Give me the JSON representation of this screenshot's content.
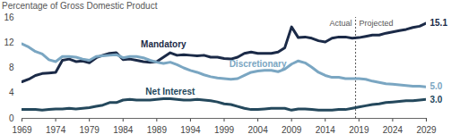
{
  "chart_data": {
    "type": "line",
    "y_label": "Percentage of Gross Domestic Product",
    "x": [
      1969,
      1970,
      1971,
      1972,
      1973,
      1974,
      1975,
      1976,
      1977,
      1978,
      1979,
      1980,
      1981,
      1982,
      1983,
      1984,
      1985,
      1986,
      1987,
      1988,
      1989,
      1990,
      1991,
      1992,
      1993,
      1994,
      1995,
      1996,
      1997,
      1998,
      1999,
      2000,
      2001,
      2002,
      2003,
      2004,
      2005,
      2006,
      2007,
      2008,
      2009,
      2010,
      2011,
      2012,
      2013,
      2014,
      2015,
      2016,
      2017,
      2018,
      2019,
      2020,
      2021,
      2022,
      2023,
      2024,
      2025,
      2026,
      2027,
      2028,
      2029
    ],
    "series": [
      {
        "name": "Mandatory",
        "color": "#1b2a47",
        "values": [
          5.8,
          6.2,
          6.8,
          7.1,
          7.2,
          7.3,
          9.2,
          9.4,
          9.0,
          9.1,
          8.8,
          9.6,
          10.0,
          10.3,
          10.4,
          9.3,
          9.4,
          9.2,
          9.0,
          8.9,
          9.0,
          9.7,
          10.4,
          10.0,
          10.1,
          10.0,
          9.9,
          10.0,
          9.7,
          9.7,
          9.5,
          9.4,
          9.7,
          10.3,
          10.5,
          10.3,
          10.3,
          10.3,
          10.5,
          11.2,
          14.5,
          12.8,
          12.9,
          12.7,
          12.3,
          12.1,
          12.7,
          12.9,
          12.9,
          12.7,
          12.8,
          13.0,
          13.2,
          13.2,
          13.5,
          13.7,
          13.9,
          14.1,
          14.4,
          14.6,
          15.1
        ],
        "value_labels": [
          null,
          null,
          null,
          null,
          null,
          null,
          null,
          null,
          null,
          null,
          null,
          null,
          null,
          null,
          null,
          null,
          null,
          null,
          null,
          null,
          null,
          null,
          null,
          null,
          null,
          null,
          null,
          null,
          null,
          null,
          null,
          null,
          null,
          null,
          null,
          null,
          null,
          null,
          null,
          null,
          null,
          null,
          null,
          null,
          null,
          null,
          null,
          null,
          null,
          null,
          null,
          null,
          null,
          null,
          null,
          null,
          null,
          null,
          null,
          null,
          "15.1"
        ]
      },
      {
        "name": "Discretionary",
        "color": "#7aa6c2",
        "values": [
          11.8,
          11.3,
          10.6,
          10.2,
          9.3,
          9.0,
          9.8,
          9.8,
          9.7,
          9.4,
          9.2,
          9.8,
          9.9,
          10.0,
          10.1,
          9.6,
          9.8,
          9.8,
          9.6,
          9.2,
          8.9,
          8.7,
          8.9,
          8.5,
          8.0,
          7.6,
          7.3,
          6.9,
          6.6,
          6.4,
          6.3,
          6.2,
          6.3,
          6.8,
          7.3,
          7.5,
          7.6,
          7.6,
          7.4,
          7.8,
          8.6,
          9.1,
          8.8,
          8.1,
          7.3,
          6.8,
          6.5,
          6.5,
          6.3,
          6.3,
          6.3,
          6.2,
          5.9,
          5.7,
          5.5,
          5.4,
          5.3,
          5.2,
          5.1,
          5.1,
          5.0
        ],
        "value_labels": [
          null,
          null,
          null,
          null,
          null,
          null,
          null,
          null,
          null,
          null,
          null,
          null,
          null,
          null,
          null,
          null,
          null,
          null,
          null,
          null,
          null,
          null,
          null,
          null,
          null,
          null,
          null,
          null,
          null,
          null,
          null,
          null,
          null,
          null,
          null,
          null,
          null,
          null,
          null,
          null,
          null,
          null,
          null,
          null,
          null,
          null,
          null,
          null,
          null,
          null,
          null,
          null,
          null,
          null,
          null,
          null,
          null,
          null,
          null,
          null,
          "5.0"
        ]
      },
      {
        "name": "Net Interest",
        "color": "#24485c",
        "values": [
          1.4,
          1.4,
          1.4,
          1.3,
          1.4,
          1.5,
          1.5,
          1.6,
          1.5,
          1.6,
          1.7,
          1.9,
          2.1,
          2.5,
          2.5,
          2.9,
          3.0,
          2.9,
          2.9,
          2.9,
          3.0,
          3.1,
          3.1,
          3.0,
          2.9,
          2.9,
          3.0,
          2.9,
          2.8,
          2.6,
          2.3,
          2.2,
          1.9,
          1.6,
          1.4,
          1.4,
          1.5,
          1.6,
          1.6,
          1.6,
          1.3,
          1.5,
          1.5,
          1.4,
          1.3,
          1.3,
          1.3,
          1.4,
          1.4,
          1.6,
          1.8,
          2.0,
          2.2,
          2.3,
          2.5,
          2.6,
          2.7,
          2.8,
          2.8,
          2.9,
          3.0
        ],
        "value_labels": [
          null,
          null,
          null,
          null,
          null,
          null,
          null,
          null,
          null,
          null,
          null,
          null,
          null,
          null,
          null,
          null,
          null,
          null,
          null,
          null,
          null,
          null,
          null,
          null,
          null,
          null,
          null,
          null,
          null,
          null,
          null,
          null,
          null,
          null,
          null,
          null,
          null,
          null,
          null,
          null,
          null,
          null,
          null,
          null,
          null,
          null,
          null,
          null,
          null,
          null,
          null,
          null,
          null,
          null,
          null,
          null,
          null,
          null,
          null,
          null,
          "3.0"
        ]
      }
    ],
    "annotations": [
      {
        "text": "Actual",
        "x": 2018.5
      },
      {
        "text": "Projected",
        "x": 2018.5
      }
    ],
    "xlim": [
      1969,
      2029
    ],
    "xticks": [
      1969,
      1974,
      1979,
      1984,
      1989,
      1994,
      1999,
      2004,
      2009,
      2014,
      2019,
      2024,
      2029
    ],
    "ylim": [
      0,
      16
    ],
    "yticks": [
      0,
      4,
      8,
      12,
      16
    ],
    "grid": false,
    "data_labels": true
  }
}
